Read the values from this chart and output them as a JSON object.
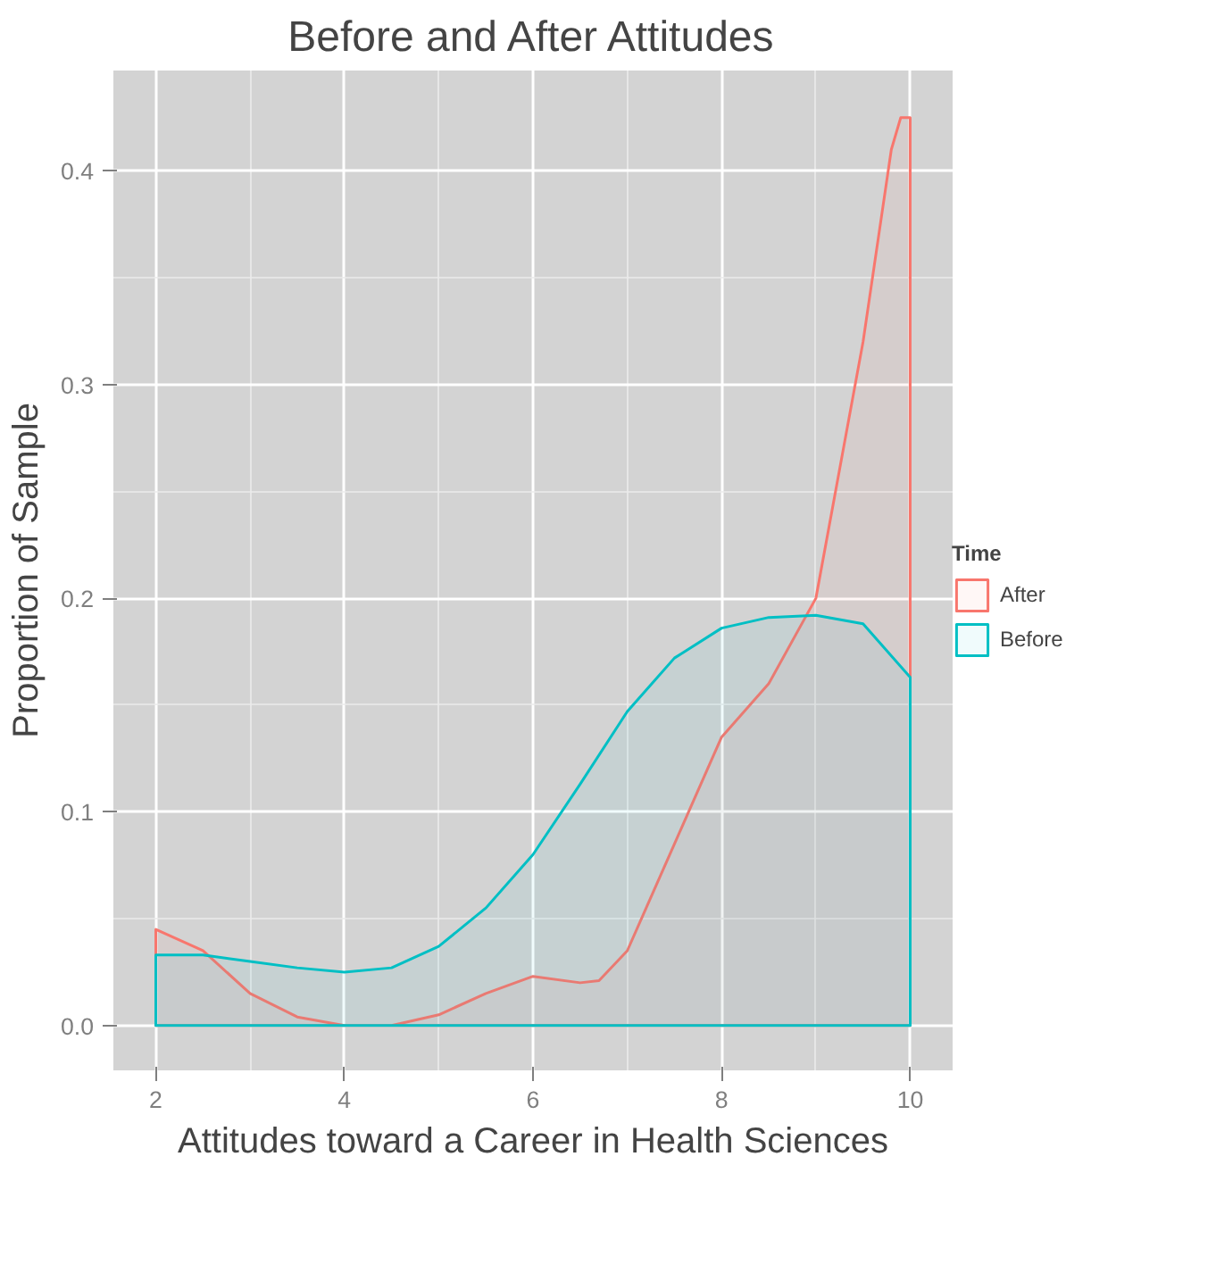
{
  "chart_data": {
    "type": "area",
    "title": "Before and After Attitudes",
    "xlabel": "Attitudes toward a Career in Health Sciences",
    "ylabel": "Proportion of Sample",
    "legend_title": "Time",
    "legend": "right",
    "grid": true,
    "xlim": [
      1.55,
      10.45
    ],
    "ylim": [
      -0.021,
      0.447
    ],
    "xticks": [
      2,
      4,
      6,
      8,
      10
    ],
    "yticks": [
      {
        "value": 0,
        "label": "0.0"
      },
      0.1,
      0.2,
      0.3,
      0.4
    ],
    "series": [
      {
        "name": "After",
        "color": "#f8766d",
        "x": [
          2,
          2.5,
          3,
          3.5,
          4,
          4.5,
          5,
          5.5,
          6,
          6.5,
          6.7,
          7,
          7.5,
          8,
          8.5,
          9,
          9.5,
          9.8,
          9.9,
          10
        ],
        "values": [
          0.045,
          0.035,
          0.015,
          0.004,
          0.0,
          0.0,
          0.005,
          0.015,
          0.023,
          0.02,
          0.021,
          0.035,
          0.085,
          0.135,
          0.16,
          0.2,
          0.32,
          0.41,
          0.425,
          0.425
        ]
      },
      {
        "name": "Before",
        "color": "#00bfc4",
        "x": [
          2,
          2.5,
          3,
          3.5,
          4,
          4.5,
          5,
          5.5,
          6,
          6.5,
          7,
          7.5,
          8,
          8.5,
          9,
          9.5,
          10
        ],
        "values": [
          0.033,
          0.033,
          0.03,
          0.027,
          0.025,
          0.027,
          0.037,
          0.055,
          0.08,
          0.113,
          0.147,
          0.172,
          0.186,
          0.191,
          0.192,
          0.188,
          0.163
        ]
      }
    ]
  }
}
